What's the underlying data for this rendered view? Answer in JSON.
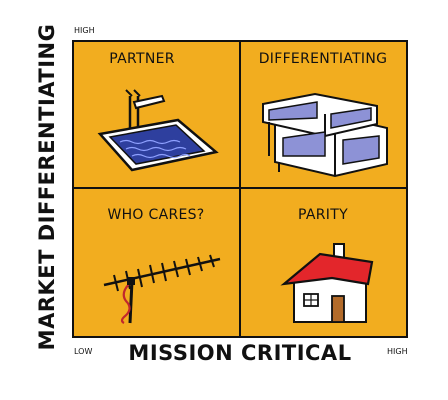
{
  "axes": {
    "x_label": "MISSION CRITICAL",
    "y_label": "MARKET DIFFERENTIATING",
    "x_low": "LOW",
    "x_high": "HIGH",
    "y_high": "HIGH"
  },
  "quadrants": {
    "top_left": {
      "label": "PARTNER",
      "icon": "diving-board-pool-icon"
    },
    "top_right": {
      "label": "DIFFERENTIATING",
      "icon": "modern-house-icon"
    },
    "bottom_left": {
      "label": "WHO CARES?",
      "icon": "tv-antenna-icon"
    },
    "bottom_right": {
      "label": "PARITY",
      "icon": "simple-house-icon"
    }
  },
  "colors": {
    "quadrant_fill": "#f2ad1f",
    "outline": "#111111",
    "pool_water": "#2e3f9e",
    "house_window": "#8d92d6",
    "roof": "#e3262b"
  }
}
